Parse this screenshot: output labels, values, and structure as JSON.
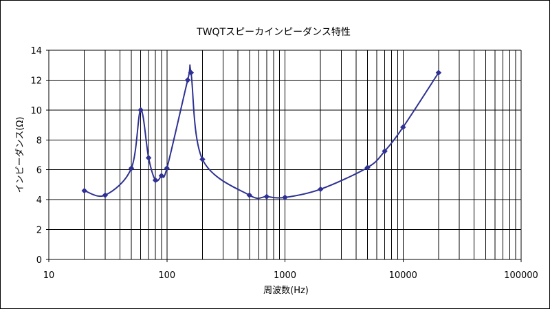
{
  "chart_data": {
    "type": "line",
    "title": "TWQTスピーカインピーダンス特性",
    "xlabel": "周波数(Hz)",
    "ylabel": "インピーダンス(Ω)",
    "x_scale": "log",
    "xlim": [
      10,
      100000
    ],
    "ylim": [
      0,
      14
    ],
    "x_ticks": [
      10,
      100,
      1000,
      10000,
      100000
    ],
    "x_tick_labels": [
      "10",
      "100",
      "1000",
      "10000",
      "100000"
    ],
    "y_ticks": [
      0,
      2,
      4,
      6,
      8,
      10,
      12,
      14
    ],
    "y_tick_labels": [
      "0",
      "2",
      "4",
      "6",
      "8",
      "10",
      "12",
      "14"
    ],
    "grid": true,
    "line_color": "#2e3192",
    "series": [
      {
        "x": [
          20,
          30,
          50,
          60,
          70,
          80,
          90,
          100,
          150,
          160,
          200,
          500,
          700,
          1000,
          2000,
          5000,
          7000,
          10000,
          20000
        ],
        "y": [
          4.6,
          4.3,
          6.1,
          10.0,
          6.8,
          5.3,
          5.6,
          6.1,
          12.0,
          12.5,
          6.7,
          4.3,
          4.2,
          4.15,
          4.7,
          6.15,
          7.25,
          8.85,
          12.5
        ]
      }
    ]
  }
}
